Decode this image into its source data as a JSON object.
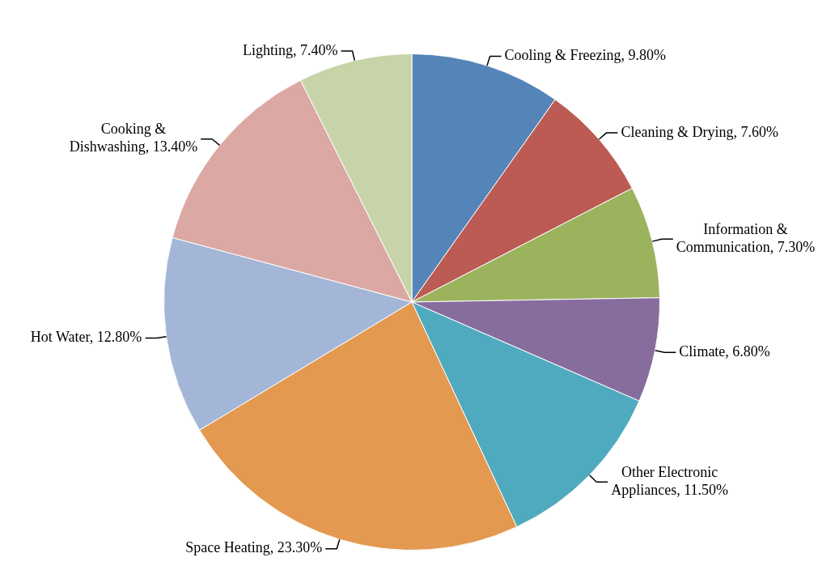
{
  "chart_data": {
    "type": "pie",
    "categories": [
      "Cooling & Freezing",
      "Cleaning & Drying",
      "Information & Communication",
      "Climate",
      "Other Electronic Appliances",
      "Space Heating",
      "Hot Water",
      "Cooking & Dishwashing",
      "Lighting"
    ],
    "values": [
      9.8,
      7.6,
      7.3,
      6.8,
      11.5,
      23.3,
      12.8,
      13.4,
      7.4
    ],
    "value_labels": [
      "9.80%",
      "7.60%",
      "7.30%",
      "6.80%",
      "11.50%",
      "23.30%",
      "12.80%",
      "13.40%",
      "7.40%"
    ],
    "colors": [
      "#5585b8",
      "#bb5b54",
      "#9cb35e",
      "#876d9e",
      "#50aabf",
      "#e3994f",
      "#a3b6d8",
      "#dba8a3",
      "#c6d4a8"
    ],
    "legend": false
  }
}
